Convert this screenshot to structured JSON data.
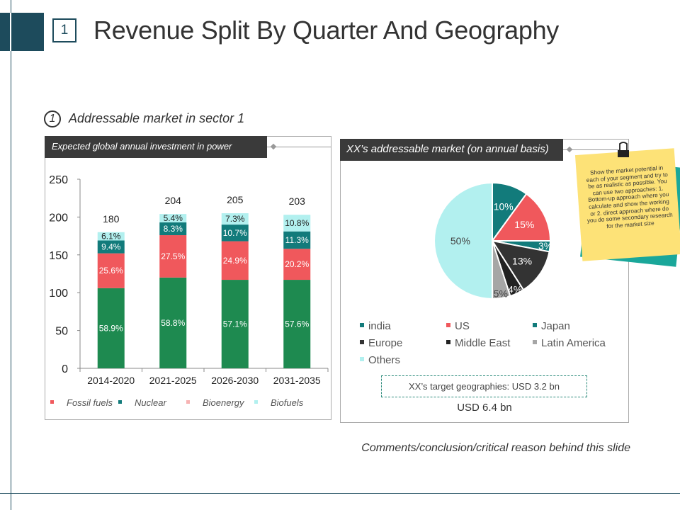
{
  "slide": {
    "number": "1",
    "title": "Revenue Split By Quarter And Geography",
    "section_number": "1",
    "section_label": "Addressable market in sector 1",
    "comments": "Comments/conclusion/critical reason behind this slide"
  },
  "left_panel": {
    "header": "Expected global annual investment in power"
  },
  "right_panel": {
    "header": "XX’s addressable market (on annual basis)",
    "target_geographies": "XX’s target geographies: USD 3.2 bn",
    "total": "USD 6.4 bn"
  },
  "sticky_note": {
    "text": "Show the market potential in each of your segment and try to be as realistic as possible. You can use two approaches: 1. Bottom-up approach where you calculate and show the working or 2. direct approach where do you do some secondary research for the market size"
  },
  "colors": {
    "dark_teal": "#1d4b5c",
    "green": "#1e8a50",
    "red": "#f0585c",
    "teal": "#127b7b",
    "pink": "#f7b3b3",
    "light_cyan": "#b2f0ef",
    "dark_gray": "#333333",
    "gray": "#a6a6a6"
  },
  "chart_data": [
    {
      "type": "bar",
      "stacked": true,
      "categories": [
        "2014-2020",
        "2021-2025",
        "2026-2030",
        "2031-2035"
      ],
      "totals": [
        "180",
        "204",
        "205",
        "203"
      ],
      "ylim": [
        0,
        250
      ],
      "yticks": [
        0,
        50,
        100,
        150,
        200,
        250
      ],
      "grid": false,
      "legend_position": "bottom",
      "series": [
        {
          "name": "",
          "color": "#1e8a50",
          "values": [
            106,
            120,
            117,
            117
          ],
          "labels": [
            "58.9%",
            "58.8%",
            "57.1%",
            "57.6%"
          ]
        },
        {
          "name": "Fossil fuels",
          "color": "#f0585c",
          "values": [
            46,
            56,
            51,
            41
          ],
          "labels": [
            "25.6%",
            "27.5%",
            "24.9%",
            "20.2%"
          ]
        },
        {
          "name": "Nuclear",
          "color": "#127b7b",
          "values": [
            17,
            17,
            22,
            23
          ],
          "labels": [
            "9.4%",
            "8.3%",
            "10.7%",
            "11.3%"
          ]
        },
        {
          "name": "Bioenergy",
          "color": "#f7b3b3",
          "values": [
            0,
            0,
            0,
            0
          ],
          "labels": [
            "",
            "",
            "",
            ""
          ]
        },
        {
          "name": "Biofuels",
          "color": "#b2f0ef",
          "values": [
            11,
            11,
            15,
            22
          ],
          "labels": [
            "6.1%",
            "5.4%",
            "7.3%",
            "10.8%"
          ]
        }
      ]
    },
    {
      "type": "pie",
      "slices": [
        {
          "name": "india",
          "value": 10,
          "label": "10%",
          "color": "#127b7b"
        },
        {
          "name": "US",
          "value": 15,
          "label": "15%",
          "color": "#f0585c"
        },
        {
          "name": "Japan",
          "value": 3,
          "label": "3%",
          "color": "#127b7b"
        },
        {
          "name": "Europe",
          "value": 13,
          "label": "13%",
          "color": "#333333"
        },
        {
          "name": "Middle East",
          "value": 4,
          "label": "4%",
          "color": "#222222"
        },
        {
          "name": "Latin America",
          "value": 5,
          "label": "5%",
          "color": "#a6a6a6"
        },
        {
          "name": "Others",
          "value": 50,
          "label": "50%",
          "color": "#b2f0ef"
        }
      ],
      "legend_position": "bottom"
    }
  ]
}
